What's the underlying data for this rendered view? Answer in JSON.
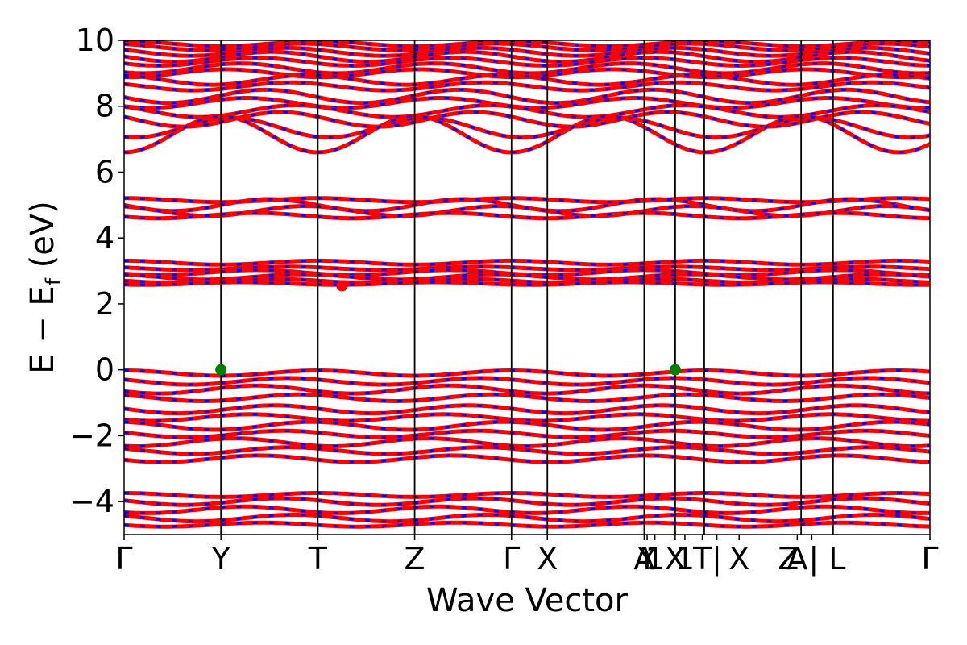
{
  "chart_data": {
    "type": "line",
    "title": "",
    "xlabel": "Wave Vector",
    "ylabel": "E − E_f (eV)",
    "ylabel_parts": {
      "main": "E  −  E",
      "sub": "f",
      "unit": " (eV)"
    },
    "ylim": [
      -5,
      10
    ],
    "yticks": [
      {
        "value": -4,
        "label": "−4"
      },
      {
        "value": -2,
        "label": "−2"
      },
      {
        "value": 0,
        "label": "0"
      },
      {
        "value": 2,
        "label": "2"
      },
      {
        "value": 4,
        "label": "4"
      },
      {
        "value": 6,
        "label": "6"
      },
      {
        "value": 8,
        "label": "8"
      },
      {
        "value": 10,
        "label": "10"
      }
    ],
    "kpath_length": 8.32,
    "kpoints": [
      {
        "k": 0.0,
        "label": "Γ"
      },
      {
        "k": 1.0,
        "label": "Y"
      },
      {
        "k": 2.0,
        "label": "T"
      },
      {
        "k": 3.0,
        "label": "Z"
      },
      {
        "k": 4.0,
        "label": "Γ"
      },
      {
        "k": 4.37,
        "label": "X"
      },
      {
        "k": 5.37,
        "label": "A"
      },
      {
        "k": 5.4,
        "label": "Y"
      },
      {
        "k": 5.48,
        "label": "1"
      },
      {
        "k": 5.69,
        "label": "X"
      },
      {
        "k": 5.79,
        "label": "1"
      },
      {
        "k": 5.97,
        "label": "T"
      },
      {
        "k": 6.12,
        "label": "|"
      },
      {
        "k": 6.35,
        "label": "X"
      },
      {
        "k": 6.95,
        "label": "A"
      },
      {
        "k": 7.1,
        "label": "Z | L"
      },
      {
        "k": 8.32,
        "label": "Γ"
      }
    ],
    "kpoint_lines": [
      1.0,
      2.0,
      3.0,
      4.0,
      4.37,
      5.37,
      5.69,
      5.99,
      6.99,
      7.32
    ],
    "series": [
      {
        "color": "#ff0000",
        "style": "solid"
      },
      {
        "color": "#0000ff",
        "style": "dashed"
      }
    ],
    "bands": [
      {
        "e0": 9.9,
        "amp": 0.08,
        "phase": 0.0
      },
      {
        "e0": 9.8,
        "amp": 0.1,
        "phase": 0.5
      },
      {
        "e0": 9.65,
        "amp": 0.12,
        "phase": 1.0
      },
      {
        "e0": 9.5,
        "amp": 0.15,
        "phase": 1.5
      },
      {
        "e0": 9.35,
        "amp": 0.12,
        "phase": 2.0
      },
      {
        "e0": 9.15,
        "amp": 0.15,
        "phase": 2.5
      },
      {
        "e0": 9.0,
        "amp": 0.12,
        "phase": 3.0
      },
      {
        "e0": 8.8,
        "amp": 0.15,
        "phase": 0.3
      },
      {
        "e0": 8.6,
        "amp": 0.12,
        "phase": 0.9
      },
      {
        "e0": 8.3,
        "amp": 0.2,
        "phase": 1.7
      },
      {
        "e0": 8.1,
        "amp": 0.15,
        "phase": 2.3
      },
      {
        "e0": 7.85,
        "amp": 0.18,
        "phase": 0.7
      },
      {
        "e0": 7.6,
        "amp": 0.22,
        "phase": 1.2
      },
      {
        "e0": 7.35,
        "amp": 0.3,
        "phase": 2.8
      },
      {
        "e0": 7.15,
        "amp": 0.55,
        "phase": 3.14
      },
      {
        "e0": 5.15,
        "amp": 0.06,
        "phase": 0.0
      },
      {
        "e0": 5.0,
        "amp": 0.18,
        "phase": 1.57
      },
      {
        "e0": 4.82,
        "amp": 0.15,
        "phase": 0.4
      },
      {
        "e0": 4.68,
        "amp": 0.08,
        "phase": 2.0
      },
      {
        "e0": 3.25,
        "amp": 0.06,
        "phase": 0.0
      },
      {
        "e0": 3.08,
        "amp": 0.05,
        "phase": 1.0
      },
      {
        "e0": 2.95,
        "amp": 0.08,
        "phase": 2.0
      },
      {
        "e0": 2.82,
        "amp": 0.08,
        "phase": 0.5
      },
      {
        "e0": 2.7,
        "amp": 0.06,
        "phase": 1.5
      },
      {
        "e0": 2.62,
        "amp": 0.04,
        "phase": 2.5
      },
      {
        "e0": -0.1,
        "amp": 0.08,
        "phase": 0.0
      },
      {
        "e0": -0.35,
        "amp": 0.1,
        "phase": 1.0
      },
      {
        "e0": -0.6,
        "amp": 0.12,
        "phase": 2.0
      },
      {
        "e0": -0.85,
        "amp": 0.1,
        "phase": 0.6
      },
      {
        "e0": -1.2,
        "amp": 0.12,
        "phase": 1.4
      },
      {
        "e0": -1.45,
        "amp": 0.1,
        "phase": 2.2
      },
      {
        "e0": -1.7,
        "amp": 0.12,
        "phase": 0.2
      },
      {
        "e0": -1.95,
        "amp": 0.1,
        "phase": 1.1
      },
      {
        "e0": -2.2,
        "amp": 0.12,
        "phase": 2.7
      },
      {
        "e0": -2.45,
        "amp": 0.1,
        "phase": 0.9
      },
      {
        "e0": -2.7,
        "amp": 0.1,
        "phase": 1.9
      },
      {
        "e0": -3.8,
        "amp": 0.06,
        "phase": 0.0
      },
      {
        "e0": -4.0,
        "amp": 0.1,
        "phase": 1.2
      },
      {
        "e0": -4.25,
        "amp": 0.1,
        "phase": 2.4
      },
      {
        "e0": -4.5,
        "amp": 0.1,
        "phase": 0.8
      },
      {
        "e0": -4.7,
        "amp": 0.06,
        "phase": 1.8
      }
    ],
    "markers": [
      {
        "k": 1.0,
        "e": 0.0,
        "color": "#008000",
        "label": "VBM"
      },
      {
        "k": 5.69,
        "e": 0.0,
        "color": "#008000",
        "label": "VBM"
      },
      {
        "k": 2.25,
        "e": 2.55,
        "color": "#ff0000",
        "label": "CBM"
      }
    ]
  }
}
